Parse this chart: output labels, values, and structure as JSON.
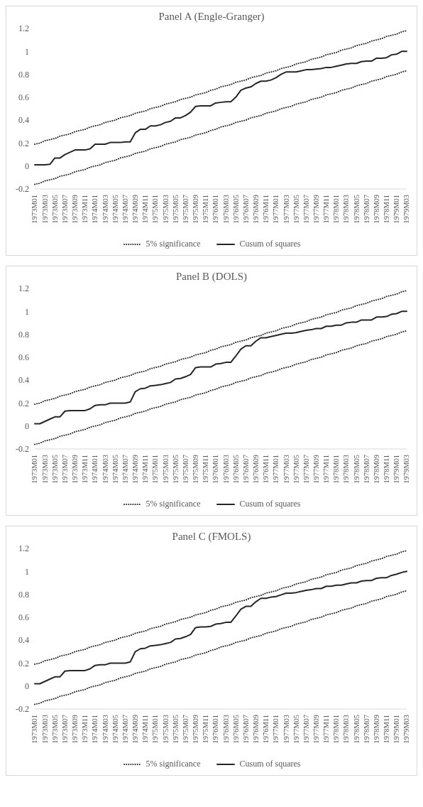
{
  "chart_data": [
    {
      "type": "line",
      "title": "Panel A (Engle-Granger)",
      "categories": [
        "1973M01",
        null,
        "1973M03",
        null,
        "1973M05",
        null,
        "1973M07",
        null,
        "1973M09",
        null,
        "1973M11",
        null,
        "1974M01",
        null,
        "1974M03",
        null,
        "1974M05",
        null,
        "1974M07",
        null,
        "1974M09",
        null,
        "1974M11",
        null,
        "1975M01",
        null,
        "1975M03",
        null,
        "1975M05",
        null,
        "1975M07",
        null,
        "1975M09",
        null,
        "1975M11",
        null,
        "1976M01",
        null,
        "1976M03",
        null,
        "1976M05",
        null,
        "1976M07",
        null,
        "1976M09",
        null,
        "1976M11",
        null,
        "1977M01",
        null,
        "1977M03",
        null,
        "1977M05",
        null,
        "1977M07",
        null,
        "1977M09",
        null,
        "1977M11",
        null,
        "1978M01",
        null,
        "1978M03",
        null,
        "1978M05",
        null,
        "1978M07",
        null,
        "1978M09",
        null,
        "1978M11",
        null,
        "1979M01",
        null,
        "1979M03"
      ],
      "series": [
        {
          "name": "5% significance",
          "color": "#262626",
          "line_style": "dotted",
          "values": [
            0.19,
            0.2,
            0.22,
            0.23,
            0.24,
            0.26,
            0.27,
            0.28,
            0.3,
            0.31,
            0.32,
            0.34,
            0.35,
            0.36,
            0.38,
            0.39,
            0.4,
            0.42,
            0.43,
            0.44,
            0.46,
            0.47,
            0.48,
            0.5,
            0.51,
            0.52,
            0.54,
            0.55,
            0.56,
            0.58,
            0.59,
            0.6,
            0.62,
            0.63,
            0.64,
            0.66,
            0.67,
            0.69,
            0.7,
            0.71,
            0.73,
            0.74,
            0.75,
            0.77,
            0.78,
            0.79,
            0.81,
            0.82,
            0.83,
            0.85,
            0.86,
            0.87,
            0.89,
            0.9,
            0.91,
            0.93,
            0.94,
            0.95,
            0.97,
            0.98,
            0.99,
            1.01,
            1.02,
            1.03,
            1.05,
            1.06,
            1.07,
            1.09,
            1.1,
            1.11,
            1.13,
            1.14,
            1.15,
            1.17,
            1.18
          ]
        },
        {
          "name": "Cusum of squares",
          "color": "#262626",
          "line_style": "solid",
          "values": [
            0.01,
            0.01,
            0.01,
            0.015,
            0.07,
            0.07,
            0.1,
            0.12,
            0.14,
            0.14,
            0.14,
            0.15,
            0.19,
            0.19,
            0.19,
            0.205,
            0.205,
            0.205,
            0.21,
            0.21,
            0.29,
            0.32,
            0.32,
            0.35,
            0.35,
            0.36,
            0.38,
            0.39,
            0.42,
            0.42,
            0.44,
            0.47,
            0.52,
            0.525,
            0.525,
            0.525,
            0.55,
            0.555,
            0.56,
            0.56,
            0.6,
            0.66,
            0.68,
            0.69,
            0.72,
            0.74,
            0.74,
            0.75,
            0.77,
            0.8,
            0.82,
            0.82,
            0.82,
            0.83,
            0.84,
            0.84,
            0.845,
            0.85,
            0.86,
            0.86,
            0.87,
            0.88,
            0.89,
            0.895,
            0.895,
            0.91,
            0.915,
            0.915,
            0.94,
            0.94,
            0.945,
            0.97,
            0.975,
            1.0,
            1.0
          ]
        },
        {
          "color": "#262626",
          "line_style": "dotted",
          "values": [
            -0.16,
            -0.15,
            -0.13,
            -0.12,
            -0.11,
            -0.09,
            -0.08,
            -0.07,
            -0.05,
            -0.04,
            -0.03,
            -0.01,
            0.0,
            0.01,
            0.03,
            0.04,
            0.05,
            0.07,
            0.08,
            0.09,
            0.11,
            0.12,
            0.13,
            0.15,
            0.16,
            0.17,
            0.19,
            0.2,
            0.21,
            0.23,
            0.24,
            0.25,
            0.27,
            0.28,
            0.29,
            0.31,
            0.32,
            0.34,
            0.35,
            0.36,
            0.38,
            0.39,
            0.4,
            0.42,
            0.43,
            0.44,
            0.46,
            0.47,
            0.48,
            0.5,
            0.51,
            0.52,
            0.54,
            0.55,
            0.56,
            0.58,
            0.59,
            0.6,
            0.62,
            0.63,
            0.64,
            0.66,
            0.67,
            0.68,
            0.7,
            0.71,
            0.72,
            0.74,
            0.75,
            0.76,
            0.78,
            0.79,
            0.8,
            0.82,
            0.83
          ]
        }
      ],
      "ylim": [
        -0.2,
        1.2
      ],
      "yticks": [
        -0.2,
        0,
        0.2,
        0.4,
        0.6,
        0.8,
        1,
        1.2
      ],
      "grid": false,
      "legend": "bottom",
      "marker": "none"
    },
    {
      "type": "line",
      "title": "Panel B (DOLS)",
      "categories": [
        "1973M01",
        null,
        "1973M03",
        null,
        "1973M05",
        null,
        "1973M07",
        null,
        "1973M09",
        null,
        "1973M11",
        null,
        "1974M01",
        null,
        "1974M03",
        null,
        "1974M05",
        null,
        "1974M07",
        null,
        "1974M09",
        null,
        "1974M11",
        null,
        "1975M01",
        null,
        "1975M03",
        null,
        "1975M05",
        null,
        "1975M07",
        null,
        "1975M09",
        null,
        "1975M11",
        null,
        "1976M01",
        null,
        "1976M03",
        null,
        "1976M05",
        null,
        "1976M07",
        null,
        "1976M09",
        null,
        "1976M11",
        null,
        "1977M01",
        null,
        "1977M03",
        null,
        "1977M05",
        null,
        "1977M07",
        null,
        "1977M09",
        null,
        "1977M11",
        null,
        "1978M01",
        null,
        "1978M03",
        null,
        "1978M05",
        null,
        "1978M07",
        null,
        "1978M09",
        null,
        "1978M11",
        null,
        "1979M01",
        null,
        "1979M03"
      ],
      "series": [
        {
          "name": "5% significance",
          "color": "#262626",
          "line_style": "dotted",
          "values": [
            0.19,
            0.2,
            0.22,
            0.23,
            0.24,
            0.26,
            0.27,
            0.28,
            0.3,
            0.31,
            0.32,
            0.34,
            0.35,
            0.36,
            0.38,
            0.39,
            0.4,
            0.42,
            0.43,
            0.44,
            0.46,
            0.47,
            0.48,
            0.5,
            0.51,
            0.52,
            0.54,
            0.55,
            0.56,
            0.58,
            0.59,
            0.6,
            0.62,
            0.63,
            0.64,
            0.66,
            0.67,
            0.69,
            0.7,
            0.71,
            0.73,
            0.74,
            0.75,
            0.77,
            0.78,
            0.79,
            0.81,
            0.82,
            0.83,
            0.85,
            0.86,
            0.87,
            0.89,
            0.9,
            0.91,
            0.93,
            0.94,
            0.95,
            0.97,
            0.98,
            0.99,
            1.01,
            1.02,
            1.03,
            1.05,
            1.06,
            1.07,
            1.09,
            1.1,
            1.11,
            1.13,
            1.14,
            1.15,
            1.17,
            1.18
          ]
        },
        {
          "name": "Cusum of squares",
          "color": "#262626",
          "line_style": "solid",
          "values": [
            0.02,
            0.02,
            0.04,
            0.06,
            0.08,
            0.08,
            0.13,
            0.135,
            0.135,
            0.135,
            0.135,
            0.15,
            0.18,
            0.185,
            0.185,
            0.2,
            0.2,
            0.2,
            0.2,
            0.21,
            0.3,
            0.325,
            0.33,
            0.35,
            0.355,
            0.36,
            0.37,
            0.38,
            0.41,
            0.415,
            0.43,
            0.45,
            0.51,
            0.515,
            0.515,
            0.515,
            0.54,
            0.545,
            0.555,
            0.555,
            0.61,
            0.67,
            0.7,
            0.7,
            0.74,
            0.77,
            0.77,
            0.78,
            0.79,
            0.8,
            0.81,
            0.81,
            0.815,
            0.825,
            0.835,
            0.84,
            0.85,
            0.85,
            0.87,
            0.87,
            0.88,
            0.88,
            0.9,
            0.905,
            0.905,
            0.925,
            0.925,
            0.925,
            0.95,
            0.95,
            0.955,
            0.975,
            0.98,
            1.0,
            1.0
          ]
        },
        {
          "color": "#262626",
          "line_style": "dotted",
          "values": [
            -0.16,
            -0.15,
            -0.13,
            -0.12,
            -0.11,
            -0.09,
            -0.08,
            -0.07,
            -0.05,
            -0.04,
            -0.03,
            -0.01,
            0.0,
            0.01,
            0.03,
            0.04,
            0.05,
            0.07,
            0.08,
            0.09,
            0.11,
            0.12,
            0.13,
            0.15,
            0.16,
            0.17,
            0.19,
            0.2,
            0.21,
            0.23,
            0.24,
            0.25,
            0.27,
            0.28,
            0.29,
            0.31,
            0.32,
            0.34,
            0.35,
            0.36,
            0.38,
            0.39,
            0.4,
            0.42,
            0.43,
            0.44,
            0.46,
            0.47,
            0.48,
            0.5,
            0.51,
            0.52,
            0.54,
            0.55,
            0.56,
            0.58,
            0.59,
            0.6,
            0.62,
            0.63,
            0.64,
            0.66,
            0.67,
            0.68,
            0.7,
            0.71,
            0.72,
            0.74,
            0.75,
            0.76,
            0.78,
            0.79,
            0.8,
            0.82,
            0.83
          ]
        }
      ],
      "ylim": [
        -0.2,
        1.2
      ],
      "yticks": [
        -0.2,
        0,
        0.2,
        0.4,
        0.6,
        0.8,
        1,
        1.2
      ],
      "grid": false,
      "legend": "bottom",
      "marker": "none"
    },
    {
      "type": "line",
      "title": "Panel C (FMOLS)",
      "categories": [
        "1973M01",
        null,
        "1973M03",
        null,
        "1973M05",
        null,
        "1973M07",
        null,
        "1973M09",
        null,
        "1973M11",
        null,
        "1974M01",
        null,
        "1974M03",
        null,
        "1974M05",
        null,
        "1974M07",
        null,
        "1974M09",
        null,
        "1974M11",
        null,
        "1975M01",
        null,
        "1975M03",
        null,
        "1975M05",
        null,
        "1975M07",
        null,
        "1975M09",
        null,
        "1975M11",
        null,
        "1976M01",
        null,
        "1976M03",
        null,
        "1976M05",
        null,
        "1976M07",
        null,
        "1976M09",
        null,
        "1976M11",
        null,
        "1977M01",
        null,
        "1977M03",
        null,
        "1977M05",
        null,
        "1977M07",
        null,
        "1977M09",
        null,
        "1977M11",
        null,
        "1978M01",
        null,
        "1978M03",
        null,
        "1978M05",
        null,
        "1978M07",
        null,
        "1978M09",
        null,
        "1978M11",
        null,
        "1979M01",
        null,
        "1979M03"
      ],
      "series": [
        {
          "name": "5% significance",
          "color": "#262626",
          "line_style": "dotted",
          "values": [
            0.19,
            0.2,
            0.22,
            0.23,
            0.24,
            0.26,
            0.27,
            0.28,
            0.3,
            0.31,
            0.32,
            0.34,
            0.35,
            0.36,
            0.38,
            0.39,
            0.4,
            0.42,
            0.43,
            0.44,
            0.46,
            0.47,
            0.48,
            0.5,
            0.51,
            0.52,
            0.54,
            0.55,
            0.56,
            0.58,
            0.59,
            0.6,
            0.62,
            0.63,
            0.64,
            0.66,
            0.67,
            0.69,
            0.7,
            0.71,
            0.73,
            0.74,
            0.75,
            0.77,
            0.78,
            0.79,
            0.81,
            0.82,
            0.83,
            0.85,
            0.86,
            0.87,
            0.89,
            0.9,
            0.91,
            0.93,
            0.94,
            0.95,
            0.97,
            0.98,
            0.99,
            1.01,
            1.02,
            1.03,
            1.05,
            1.06,
            1.07,
            1.09,
            1.1,
            1.11,
            1.13,
            1.14,
            1.15,
            1.17,
            1.18
          ]
        },
        {
          "name": "Cusum of squares",
          "color": "#262626",
          "line_style": "solid",
          "values": [
            0.02,
            0.02,
            0.04,
            0.06,
            0.08,
            0.08,
            0.13,
            0.135,
            0.135,
            0.135,
            0.135,
            0.15,
            0.18,
            0.185,
            0.185,
            0.2,
            0.2,
            0.2,
            0.2,
            0.21,
            0.3,
            0.325,
            0.33,
            0.35,
            0.355,
            0.36,
            0.37,
            0.38,
            0.41,
            0.415,
            0.43,
            0.45,
            0.51,
            0.515,
            0.515,
            0.52,
            0.54,
            0.545,
            0.555,
            0.555,
            0.61,
            0.67,
            0.695,
            0.695,
            0.735,
            0.765,
            0.765,
            0.775,
            0.78,
            0.795,
            0.81,
            0.81,
            0.815,
            0.825,
            0.835,
            0.84,
            0.85,
            0.85,
            0.87,
            0.87,
            0.88,
            0.88,
            0.89,
            0.9,
            0.9,
            0.915,
            0.92,
            0.92,
            0.94,
            0.945,
            0.945,
            0.965,
            0.975,
            0.99,
            1.0
          ]
        },
        {
          "color": "#262626",
          "line_style": "dotted",
          "values": [
            -0.16,
            -0.15,
            -0.13,
            -0.12,
            -0.11,
            -0.09,
            -0.08,
            -0.07,
            -0.05,
            -0.04,
            -0.03,
            -0.01,
            0.0,
            0.01,
            0.03,
            0.04,
            0.05,
            0.07,
            0.08,
            0.09,
            0.11,
            0.12,
            0.13,
            0.15,
            0.16,
            0.17,
            0.19,
            0.2,
            0.21,
            0.23,
            0.24,
            0.25,
            0.27,
            0.28,
            0.29,
            0.31,
            0.32,
            0.34,
            0.35,
            0.36,
            0.38,
            0.39,
            0.4,
            0.42,
            0.43,
            0.44,
            0.46,
            0.47,
            0.48,
            0.5,
            0.51,
            0.52,
            0.54,
            0.55,
            0.56,
            0.58,
            0.59,
            0.6,
            0.62,
            0.63,
            0.64,
            0.66,
            0.67,
            0.68,
            0.7,
            0.71,
            0.72,
            0.74,
            0.75,
            0.76,
            0.78,
            0.79,
            0.8,
            0.82,
            0.83
          ]
        }
      ],
      "ylim": [
        -0.2,
        1.2
      ],
      "yticks": [
        -0.2,
        0,
        0.2,
        0.4,
        0.6,
        0.8,
        1,
        1.2
      ],
      "grid": false,
      "legend": "bottom",
      "marker": "none"
    }
  ]
}
